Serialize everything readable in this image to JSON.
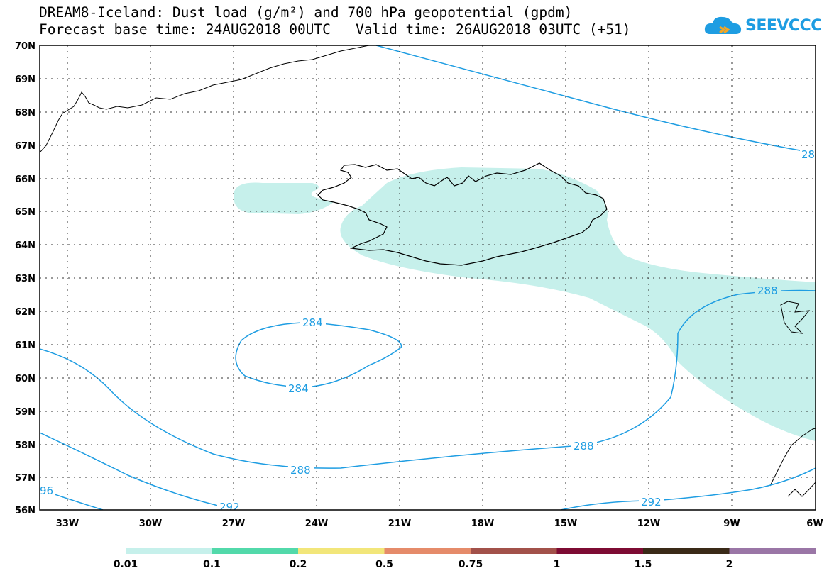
{
  "title": {
    "line1": "DREAM8-Iceland: Dust load (g/m²) and 700 hPa geopotential (gpdm)",
    "line2": "Forecast base time: 24AUG2018 00UTC   Valid time: 26AUG2018 03UTC (+51)"
  },
  "logo": {
    "text": "SEEVCCC",
    "icon": "cloud-icon"
  },
  "map": {
    "lat_labels": [
      "70N",
      "69N",
      "68N",
      "67N",
      "66N",
      "65N",
      "64N",
      "63N",
      "62N",
      "61N",
      "60N",
      "59N",
      "58N",
      "57N",
      "56N"
    ],
    "lon_labels": [
      "33W",
      "30W",
      "27W",
      "24W",
      "21W",
      "18W",
      "15W",
      "12W",
      "9W",
      "6W"
    ],
    "contour_labels": [
      {
        "text": "284",
        "id": "a"
      },
      {
        "text": "284",
        "id": "b"
      },
      {
        "text": "288",
        "id": "c"
      },
      {
        "text": "288",
        "id": "d"
      },
      {
        "text": "288",
        "id": "e"
      },
      {
        "text": "292",
        "id": "f"
      },
      {
        "text": "292",
        "id": "g"
      },
      {
        "text": "96",
        "id": "h"
      },
      {
        "text": "28",
        "id": "i"
      }
    ],
    "colors": {
      "contour": "#1e9de2",
      "dust_low": "#c6f0eb",
      "grid": "#333333"
    }
  },
  "colorbar": {
    "labels": [
      "0.01",
      "0.1",
      "0.2",
      "0.5",
      "0.75",
      "1",
      "1.5",
      "2"
    ],
    "colors": [
      "#c6f0eb",
      "#52d9aa",
      "#f2e67a",
      "#e58b6a",
      "#a2514a",
      "#7d0b33",
      "#3a2a18",
      "#9a76a6"
    ]
  }
}
